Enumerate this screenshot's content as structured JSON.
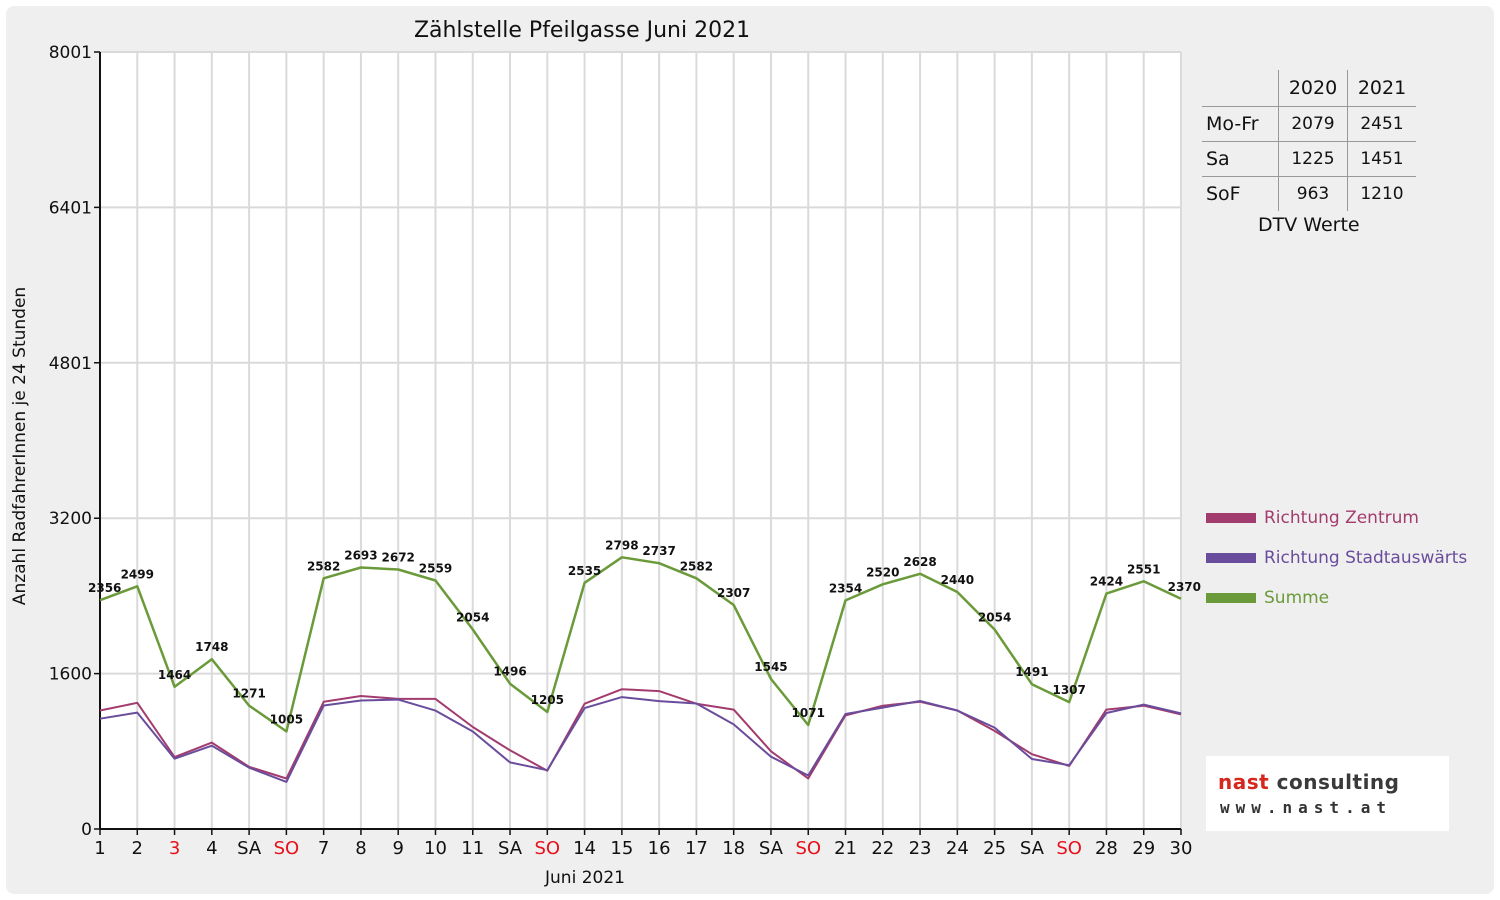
{
  "chart_data": {
    "type": "line",
    "title": "Zählstelle Pfeilgasse Juni 2021",
    "xlabel": "Juni 2021",
    "ylabel": "Anzahl RadfahrerInnen je 24 Stunden",
    "ylim": [
      0,
      8001
    ],
    "y_ticks": [
      "0",
      "1600",
      "3200",
      "4801",
      "6401",
      "8001"
    ],
    "y_tick_values": [
      0,
      1600,
      3200,
      4801,
      6401,
      8001
    ],
    "categories": [
      "1",
      "2",
      "3",
      "4",
      "SA",
      "SO",
      "7",
      "8",
      "9",
      "10",
      "11",
      "SA",
      "SO",
      "14",
      "15",
      "16",
      "17",
      "18",
      "SA",
      "SO",
      "21",
      "22",
      "23",
      "24",
      "25",
      "SA",
      "SO",
      "28",
      "29",
      "30"
    ],
    "highlighted_categories": [
      2,
      5,
      12,
      19,
      26
    ],
    "grid": true,
    "legend_position": "right",
    "series": [
      {
        "name": "Richtung Zentrum",
        "color": "#a33c6e",
        "values": [
          1220,
          1300,
          740,
          890,
          640,
          520,
          1310,
          1370,
          1340,
          1340,
          1050,
          810,
          600,
          1290,
          1440,
          1420,
          1290,
          1230,
          800,
          520,
          1170,
          1270,
          1310,
          1220,
          1010,
          770,
          650,
          1230,
          1270,
          1180
        ]
      },
      {
        "name": "Richtung Stadtauswärts",
        "color": "#6a4c9c",
        "values": [
          1136,
          1199,
          724,
          858,
          631,
          485,
          1272,
          1323,
          1332,
          1219,
          1004,
          686,
          605,
          1245,
          1358,
          1317,
          1292,
          1077,
          745,
          551,
          1184,
          1250,
          1318,
          1220,
          1044,
          721,
          657,
          1194,
          1281,
          1190
        ]
      },
      {
        "name": "Summe",
        "color": "#6b9a3a",
        "values": [
          2356,
          2499,
          1464,
          1748,
          1271,
          1005,
          2582,
          2693,
          2672,
          2559,
          2054,
          1496,
          1205,
          2535,
          2798,
          2737,
          2582,
          2307,
          1545,
          1071,
          2354,
          2520,
          2628,
          2440,
          2054,
          1491,
          1307,
          2424,
          2551,
          2370
        ],
        "labels": [
          "2356",
          "2499",
          "1464",
          "1748",
          "1271",
          "1005",
          "2582",
          "2693",
          "2672",
          "2559",
          "2054",
          "1496",
          "1205",
          "2535",
          "2798",
          "2737",
          "2582",
          "2307",
          "1545",
          "1071",
          "2354",
          "2520",
          "2628",
          "2440",
          "2054",
          "1491",
          "1307",
          "2424",
          "2551",
          "2370"
        ]
      }
    ]
  },
  "dtv_table": {
    "col_2020": "2020",
    "col_2021": "2021",
    "rows": [
      {
        "label": "Mo-Fr",
        "v2020": "2079",
        "v2021": "2451"
      },
      {
        "label": "Sa",
        "v2020": "1225",
        "v2021": "1451"
      },
      {
        "label": "SoF",
        "v2020": "963",
        "v2021": "1210"
      }
    ],
    "caption": "DTV Werte"
  },
  "logo": {
    "word1": "nast",
    "word2": "consulting",
    "url": "www.nast.at"
  }
}
